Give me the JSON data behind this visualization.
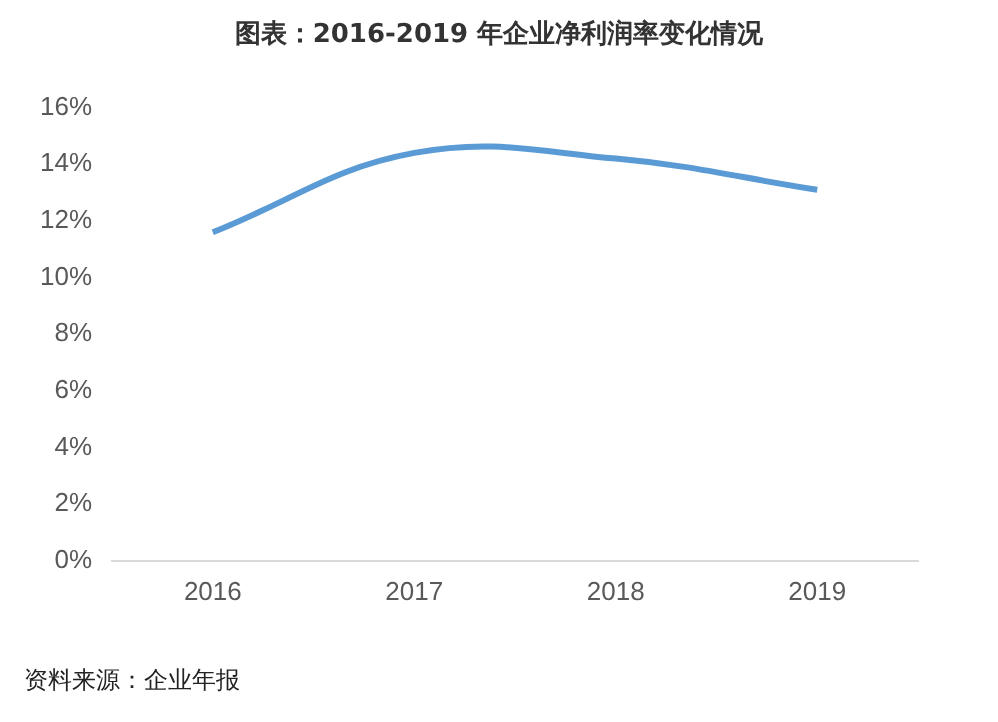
{
  "chart_data": {
    "type": "line",
    "title": "图表：2016-2019 年企业净利润率变化情况",
    "categories": [
      "2016",
      "2017",
      "2018",
      "2019"
    ],
    "series": [
      {
        "color": "#5b9bd5",
        "values": [
          11.6,
          14.4,
          14.2,
          13.1
        ]
      }
    ],
    "ylim": [
      0,
      16
    ],
    "yticks": [
      {
        "value": 0,
        "label": "0%"
      },
      {
        "value": 2,
        "label": "2%"
      },
      {
        "value": 4,
        "label": "4%"
      },
      {
        "value": 6,
        "label": "6%"
      },
      {
        "value": 8,
        "label": "8%"
      },
      {
        "value": 10,
        "label": "10%"
      },
      {
        "value": 12,
        "label": "12%"
      },
      {
        "value": 14,
        "label": "14%"
      },
      {
        "value": 16,
        "label": "16%"
      }
    ],
    "grid": false,
    "legend": false,
    "marker": "none",
    "line_style": "solid",
    "annotations": [
      "资料来源：企业年报"
    ]
  }
}
